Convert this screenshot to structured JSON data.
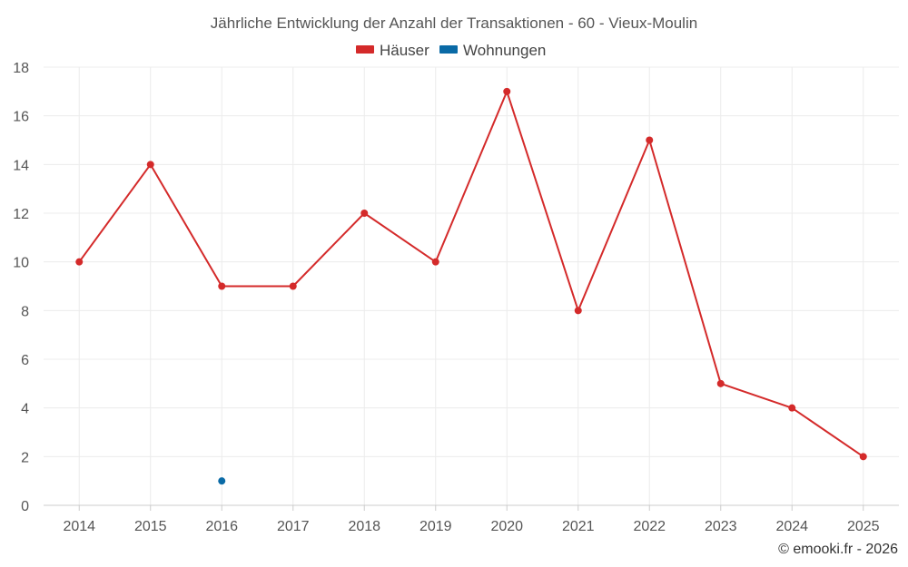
{
  "chart_data": {
    "type": "line",
    "title": "Jährliche Entwicklung der Anzahl der Transaktionen - 60 - Vieux-Moulin",
    "categories": [
      "2014",
      "2015",
      "2016",
      "2017",
      "2018",
      "2019",
      "2020",
      "2021",
      "2022",
      "2023",
      "2024",
      "2025"
    ],
    "ylim": [
      0,
      18
    ],
    "yticks": [
      "0",
      "2",
      "4",
      "6",
      "8",
      "10",
      "12",
      "14",
      "16",
      "18"
    ],
    "grid": true,
    "legend_position": "top-center",
    "series": [
      {
        "name": "Häuser",
        "color": "#d42a2a",
        "values": [
          10,
          14,
          9,
          9,
          12,
          10,
          17,
          8,
          15,
          5,
          4,
          2
        ]
      },
      {
        "name": "Wohnungen",
        "color": "#0a6aa6",
        "values": [
          null,
          null,
          1,
          null,
          null,
          null,
          null,
          null,
          null,
          null,
          null,
          null
        ]
      }
    ]
  },
  "credit": "© emooki.fr - 2026"
}
